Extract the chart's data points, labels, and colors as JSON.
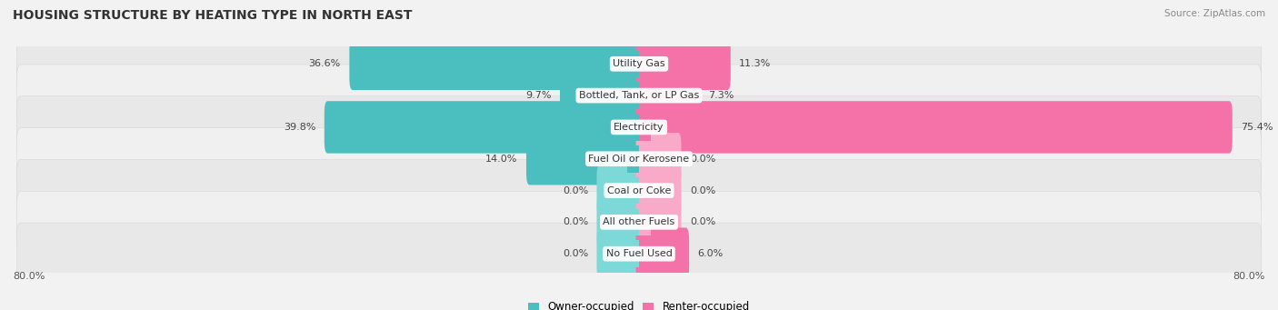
{
  "title": "HOUSING STRUCTURE BY HEATING TYPE IN NORTH EAST",
  "source": "Source: ZipAtlas.com",
  "categories": [
    "Utility Gas",
    "Bottled, Tank, or LP Gas",
    "Electricity",
    "Fuel Oil or Kerosene",
    "Coal or Coke",
    "All other Fuels",
    "No Fuel Used"
  ],
  "owner_values": [
    36.6,
    9.7,
    39.8,
    14.0,
    0.0,
    0.0,
    0.0
  ],
  "renter_values": [
    11.3,
    7.3,
    75.4,
    0.0,
    0.0,
    0.0,
    6.0
  ],
  "owner_color": "#4bbfbf",
  "renter_color": "#f472a8",
  "owner_color_light": "#7dd8d8",
  "renter_color_light": "#f9aac8",
  "axis_max": 80.0,
  "background_color": "#f2f2f2",
  "row_colors": [
    "#e8e8e8",
    "#f0f0f0"
  ],
  "title_fontsize": 10,
  "label_fontsize": 8,
  "value_fontsize": 8,
  "legend_fontsize": 8.5,
  "stub_size": 5.0
}
